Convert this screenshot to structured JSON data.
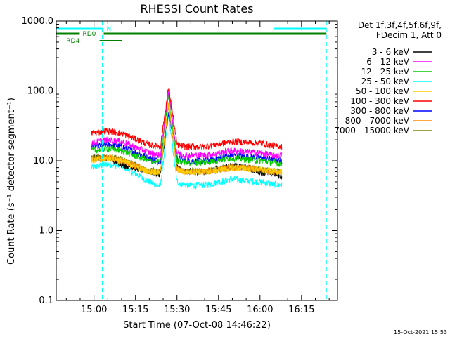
{
  "chart_data": {
    "type": "line",
    "title": "RHESSI Count Rates",
    "xlabel": "Start Time (07-Oct-08 14:46:22)",
    "ylabel": "Count Rate (s⁻¹ detector segment⁻¹)",
    "yscale": "log",
    "ylim": [
      0.1,
      1000
    ],
    "xlim": [
      "14:46:22",
      "16:28"
    ],
    "x_ticks": [
      "15:00",
      "15:15",
      "15:30",
      "15:45",
      "16:00",
      "16:15"
    ],
    "y_ticks": [
      "0.1",
      "1.0",
      "10.0",
      "100.0",
      "1000.0"
    ],
    "legend": {
      "placement": "right, outside plot",
      "header": [
        "Det 1f,3f,4f,5f,6f,9f,",
        "FDecim 1, Att 0"
      ],
      "entries": [
        {
          "label": "3 - 6 keV",
          "color": "#000000"
        },
        {
          "label": "6 - 12 keV",
          "color": "#ff00ff"
        },
        {
          "label": "12 - 25 keV",
          "color": "#00cc00"
        },
        {
          "label": "25 - 50 keV",
          "color": "#00ffff"
        },
        {
          "label": "50 - 100 keV",
          "color": "#ffcc00"
        },
        {
          "label": "100 - 300 keV",
          "color": "#ff0000"
        },
        {
          "label": "300 - 800 keV",
          "color": "#0000ff"
        },
        {
          "label": "800 - 7000 keV",
          "color": "#ff8800"
        },
        {
          "label": "7000 - 15000 keV",
          "color": "#808000"
        }
      ]
    },
    "series": [
      {
        "name": "3 - 6 keV",
        "color": "#000000",
        "x": [
          "14:59",
          "15:05",
          "15:10",
          "15:20",
          "15:24",
          "15:27",
          "15:30",
          "15:33",
          "15:40",
          "15:50",
          "15:55",
          "16:00",
          "16:05",
          "16:08"
        ],
        "y": [
          11,
          11,
          9,
          7,
          6.5,
          60,
          8,
          7,
          7,
          8.5,
          8,
          7,
          6.5,
          6
        ]
      },
      {
        "name": "6 - 12 keV",
        "color": "#ff00ff",
        "x": [
          "14:59",
          "15:05",
          "15:10",
          "15:20",
          "15:24",
          "15:27",
          "15:30",
          "15:33",
          "15:40",
          "15:50",
          "15:55",
          "16:00",
          "16:05",
          "16:08"
        ],
        "y": [
          18,
          20,
          19,
          13,
          12,
          105,
          13,
          12,
          12,
          14,
          13.5,
          13,
          12,
          12
        ]
      },
      {
        "name": "12 - 25 keV",
        "color": "#00cc00",
        "x": [
          "14:59",
          "15:05",
          "15:10",
          "15:20",
          "15:24",
          "15:27",
          "15:30",
          "15:33",
          "15:40",
          "15:50",
          "15:55",
          "16:00",
          "16:05",
          "16:08"
        ],
        "y": [
          14,
          15,
          14,
          10,
          9.5,
          95,
          10,
          9.5,
          9.5,
          11,
          10.5,
          10,
          9.5,
          9
        ]
      },
      {
        "name": "25 - 50 keV",
        "color": "#00ffff",
        "x": [
          "14:59",
          "15:05",
          "15:10",
          "15:20",
          "15:24",
          "15:27",
          "15:30",
          "15:33",
          "15:40",
          "15:50",
          "15:55",
          "16:00",
          "16:05",
          "16:08"
        ],
        "y": [
          8,
          9,
          8.5,
          5,
          4.3,
          45,
          5,
          4.5,
          4.5,
          5.5,
          5.2,
          5,
          4.6,
          4.5
        ]
      },
      {
        "name": "50 - 100 keV",
        "color": "#ffcc00",
        "x": [
          "14:59",
          "15:05",
          "15:10",
          "15:20",
          "15:24",
          "15:27",
          "15:30",
          "15:33",
          "15:40",
          "15:50",
          "15:55",
          "16:00",
          "16:05",
          "16:08"
        ],
        "y": [
          10,
          11,
          10,
          7,
          7,
          70,
          7.5,
          7,
          7,
          8,
          7.8,
          7.5,
          7,
          7
        ]
      },
      {
        "name": "100 - 300 keV",
        "color": "#ff0000",
        "x": [
          "14:59",
          "15:05",
          "15:10",
          "15:20",
          "15:24",
          "15:27",
          "15:30",
          "15:33",
          "15:40",
          "15:50",
          "15:55",
          "16:00",
          "16:05",
          "16:08"
        ],
        "y": [
          25,
          27,
          25,
          17,
          16,
          115,
          17,
          16,
          16,
          19,
          18.5,
          18,
          16.5,
          16
        ]
      },
      {
        "name": "300 - 800 keV",
        "color": "#0000ff",
        "x": [
          "14:59",
          "15:05",
          "15:10",
          "15:20",
          "15:24",
          "15:27",
          "15:30",
          "15:33",
          "15:40",
          "15:50",
          "15:55",
          "16:00",
          "16:05",
          "16:08"
        ],
        "y": [
          16,
          17,
          16,
          11,
          10,
          50,
          11,
          10,
          10,
          12,
          11.5,
          11,
          10.5,
          10
        ]
      },
      {
        "name": "800 - 7000 keV",
        "color": "#ff8800",
        "x": [
          "14:59",
          "15:05",
          "15:10",
          "15:20",
          "15:24",
          "15:27",
          "15:30",
          "15:33",
          "15:40",
          "15:50",
          "15:55",
          "16:00",
          "16:05",
          "16:08"
        ],
        "y": [
          10.5,
          11,
          10,
          7,
          7,
          65,
          7.5,
          7,
          7,
          8,
          7.8,
          7.5,
          7,
          7
        ]
      },
      {
        "name": "7000 - 15000 keV",
        "color": "#808000",
        "x": [
          "14:59",
          "15:05",
          "15:10",
          "15:20",
          "15:24",
          "15:27",
          "15:30",
          "15:33",
          "15:40",
          "15:50",
          "15:55",
          "16:00",
          "16:05",
          "16:08"
        ],
        "y": [
          11,
          11.5,
          10.5,
          7.2,
          7,
          62,
          7.6,
          7.1,
          7.1,
          8.2,
          8,
          7.6,
          7.1,
          7
        ]
      }
    ],
    "markers": {
      "night_label": "N",
      "rd0_label": "RD0",
      "rd4_label": "RD4",
      "night_color": "#00ffff",
      "rd_color": "#008000",
      "vertical_lines": [
        {
          "time": "14:46:22",
          "style": "solid",
          "color": "#00ffff"
        },
        {
          "time": "15:03",
          "style": "dashed",
          "color": "#00ffff"
        },
        {
          "time": "16:05",
          "style": "solid",
          "color": "#00ffff"
        },
        {
          "time": "16:24",
          "style": "dashed",
          "color": "#00ffff"
        }
      ]
    }
  },
  "footer": {
    "timestamp": "15-Oct-2021 15:53"
  }
}
